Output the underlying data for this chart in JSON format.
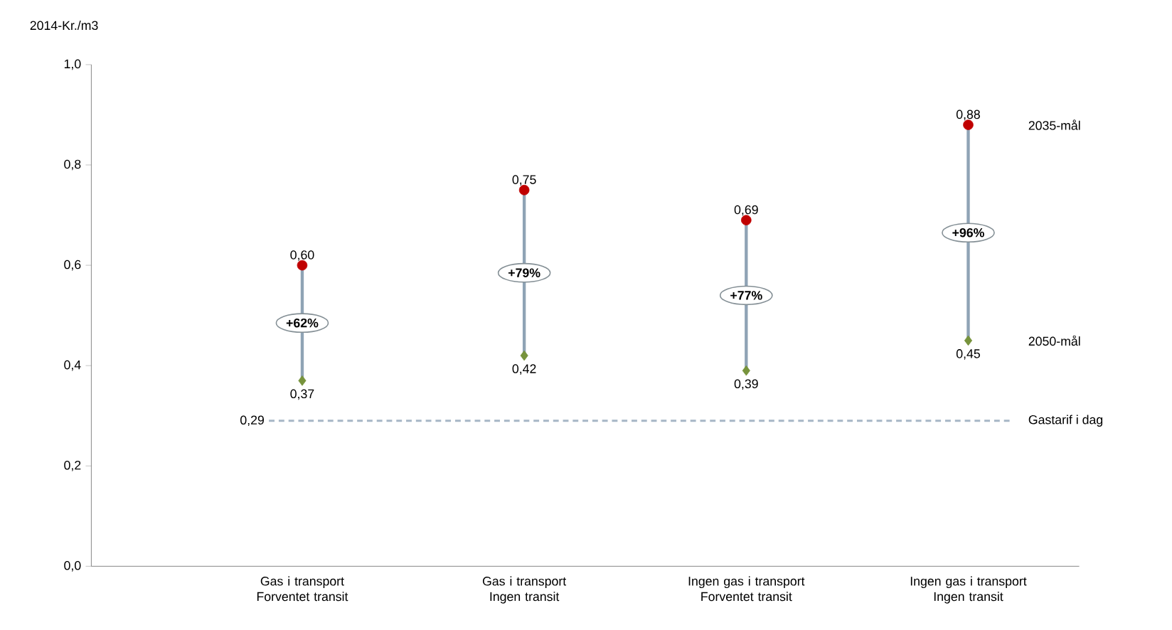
{
  "chart_data": {
    "type": "scatter",
    "ylabel": "2014-Kr./m3",
    "categories": [
      "Gas i transport Forventet transit",
      "Gas i transport Ingen transit",
      "Ingen gas i transport Forventet transit",
      "Ingen gas i transport Ingen transit"
    ],
    "series": [
      {
        "type": "bar",
        "color": "#8fa3b5",
        "base": [
          0.37,
          0.42,
          0.39,
          0.45
        ],
        "values": [
          0.23,
          0.33,
          0.3,
          0.43
        ]
      },
      {
        "name": "2035-mål",
        "color": "#c00000",
        "marker": "circle",
        "values": [
          0.6,
          0.75,
          0.69,
          0.88
        ],
        "value_labels": [
          "0,60",
          "0,75",
          "0,69",
          "0,88"
        ]
      },
      {
        "name": "2050-mål",
        "color": "#77933c",
        "marker": "diamond",
        "values": [
          0.37,
          0.42,
          0.39,
          0.45
        ],
        "value_labels": [
          "0,37",
          "0,42",
          "0,39",
          "0,45"
        ]
      }
    ],
    "ylim": [
      0,
      1.0
    ],
    "yticks": [
      {
        "value": 0,
        "label": "0,0"
      },
      {
        "value": 0.2,
        "label": "0,2"
      },
      {
        "value": 0.4,
        "label": "0,4"
      },
      {
        "value": 0.6,
        "label": "0,6"
      },
      {
        "value": 0.8,
        "label": "0,8"
      },
      {
        "value": 1.0,
        "label": "1,0"
      }
    ],
    "ref_lines": [
      {
        "axis": "y",
        "value": 0.29,
        "label": "Gastarif i dag",
        "color": "#a6b6c6",
        "line_style": "dashed"
      }
    ],
    "annotations": [
      "+62%",
      "+79%",
      "+77%",
      "+96%",
      "0,29"
    ],
    "grid": false
  }
}
